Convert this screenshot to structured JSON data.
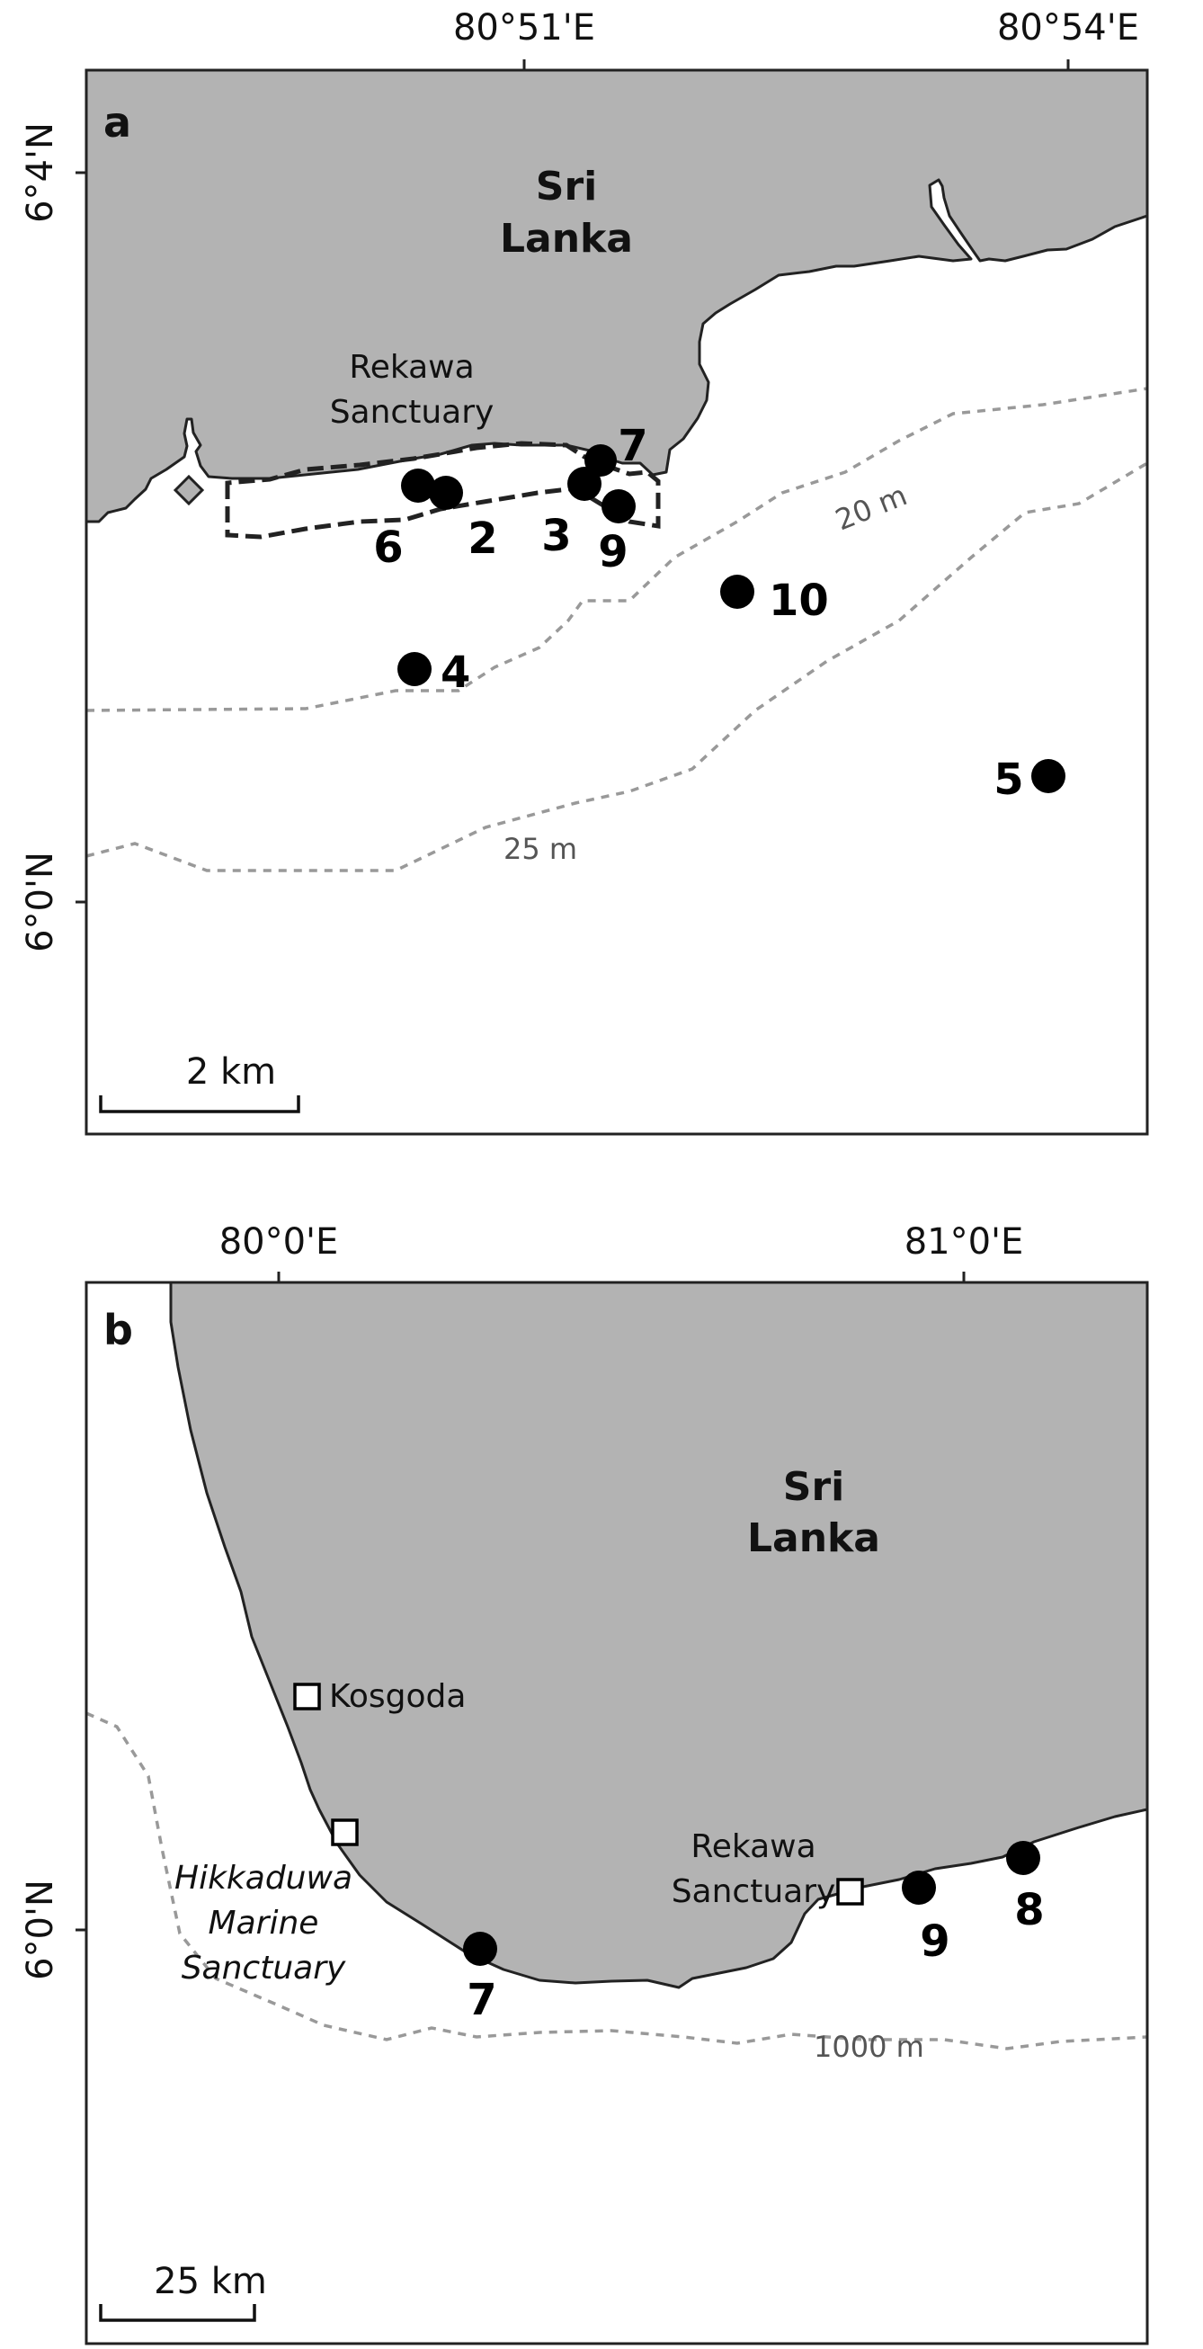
{
  "figure": {
    "panel_a": {
      "label": "a",
      "x_ticks": [
        "80°51'E",
        "80°54'E"
      ],
      "y_ticks": [
        "6°4'N",
        "6°0'N"
      ],
      "country": [
        "Sri",
        "Lanka"
      ],
      "sanctuary_label": [
        "Rekawa",
        "Sanctuary"
      ],
      "isobaths": [
        "20 m",
        "25 m"
      ],
      "scale_bar": "2 km",
      "sites": [
        "2",
        "3",
        "4",
        "5",
        "6",
        "7",
        "9",
        "10"
      ]
    },
    "panel_b": {
      "label": "b",
      "x_ticks": [
        "80°0'E",
        "81°0'E"
      ],
      "y_ticks": [
        "6°0'N"
      ],
      "country": [
        "Sri",
        "Lanka"
      ],
      "places": {
        "kosgoda": "Kosgoda",
        "rekawa": [
          "Rekawa",
          "Sanctuary"
        ],
        "hikkaduwa": [
          "Hikkaduwa",
          "Marine",
          "Sanctuary"
        ]
      },
      "isobaths": [
        "1000 m"
      ],
      "scale_bar": "25 km",
      "sites": [
        "7",
        "8",
        "9"
      ]
    }
  }
}
